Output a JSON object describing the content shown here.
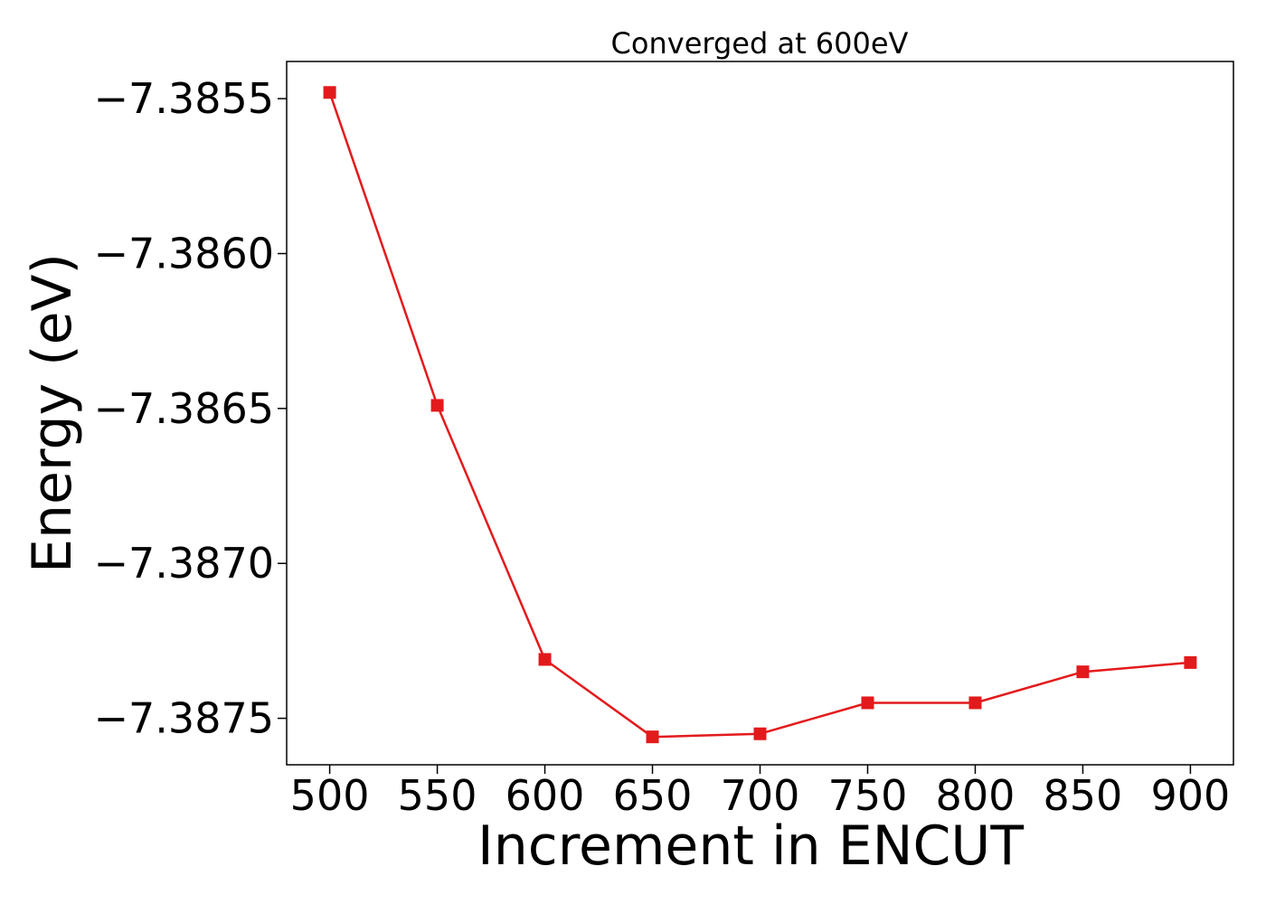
{
  "chart_data": {
    "type": "line",
    "title": "Converged at 600eV",
    "xlabel": "Increment in ENCUT",
    "ylabel": "Energy (eV)",
    "x": [
      500,
      550,
      600,
      650,
      700,
      750,
      800,
      850,
      900
    ],
    "series": [
      {
        "values": [
          -7.38548,
          -7.38649,
          -7.38731,
          -7.38756,
          -7.38755,
          -7.38745,
          -7.38745,
          -7.38735,
          -7.38732
        ],
        "color": "#e31a1c",
        "marker": "square"
      }
    ],
    "xticks": [
      500,
      550,
      600,
      650,
      700,
      750,
      800,
      850,
      900
    ],
    "xtick_labels": [
      "500",
      "550",
      "600",
      "650",
      "700",
      "750",
      "800",
      "850",
      "900"
    ],
    "yticks": [
      -7.3855,
      -7.386,
      -7.3865,
      -7.387,
      -7.3875
    ],
    "ytick_labels": [
      "−7.3855",
      "−7.3860",
      "−7.3865",
      "−7.3870",
      "−7.3875"
    ],
    "xlim": [
      480,
      920
    ],
    "ylim": [
      -7.38765,
      -7.38538
    ],
    "grid": false,
    "legend": "none"
  }
}
